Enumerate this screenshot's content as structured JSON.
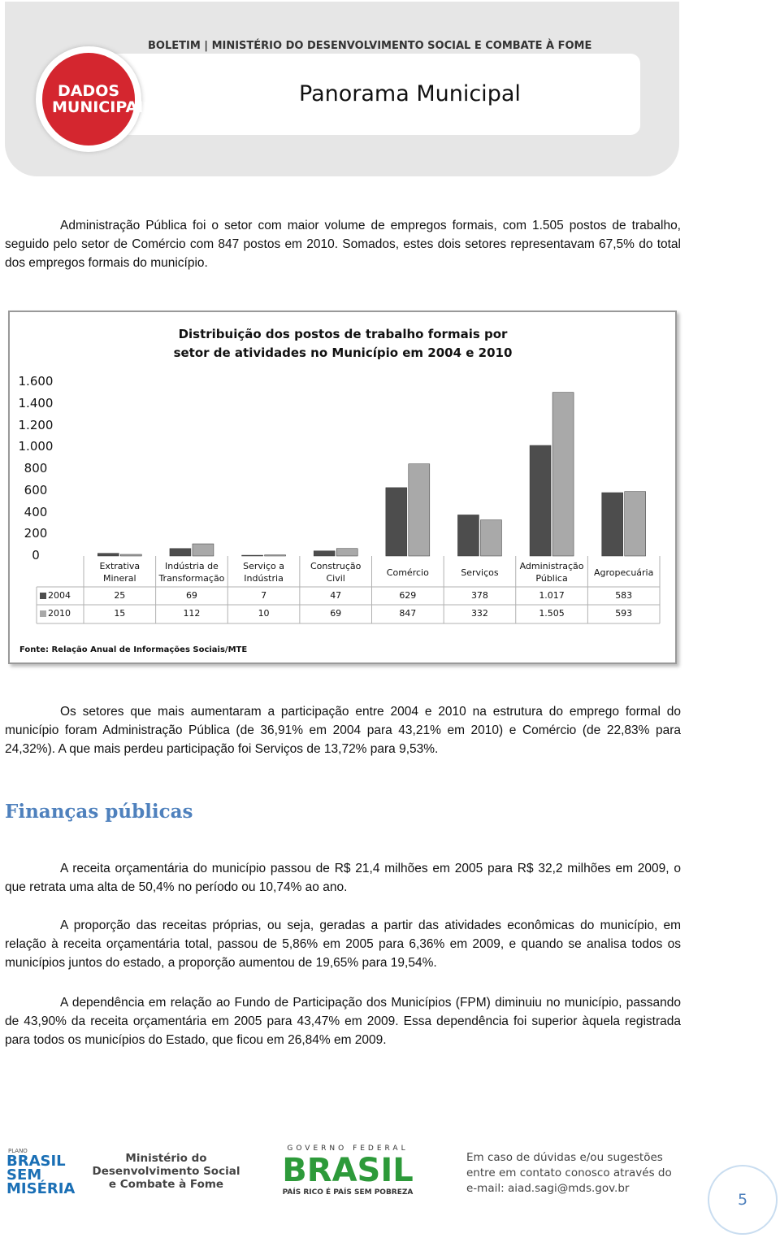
{
  "header": {
    "bulletin": "BOLETIM | MINISTÉRIO DO DESENVOLVIMENTO SOCIAL E COMBATE À FOME",
    "logo": "DADOS MUNICIPAIS",
    "title": "Panorama Municipal"
  },
  "paragraphs": [
    "Administração Pública foi o setor com maior volume de empregos formais, com 1.505 postos de trabalho, seguido pelo setor de Comércio com 847 postos em 2010. Somados, estes dois setores representavam 67,5% do total dos empregos formais do município.",
    "Os setores que mais aumentaram a participação entre 2004 e 2010 na estrutura do emprego formal do município foram Administração Pública (de 36,91% em 2004 para 43,21% em 2010) e Comércio (de 22,83% para 24,32%). A que mais perdeu participação foi Serviços de 13,72% para 9,53%."
  ],
  "chart_data": {
    "type": "bar",
    "title": "Distribuição dos postos de trabalho formais por setor de atividades no Município em 2004 e 2010",
    "categories": [
      "Extrativa Mineral",
      "Indústria de Transformação",
      "Serviço a Indústria",
      "Construção Civil",
      "Comércio",
      "Serviços",
      "Administração Pública",
      "Agropecuária"
    ],
    "series": [
      {
        "name": "2004",
        "color": "#4d4d4d",
        "values": [
          25,
          69,
          7,
          47,
          629,
          378,
          1017,
          583
        ],
        "value_labels": [
          "25",
          "69",
          "7",
          "47",
          "629",
          "378",
          "1.017",
          "583"
        ]
      },
      {
        "name": "2010",
        "color": "#a9a9a9",
        "values": [
          15,
          112,
          10,
          69,
          847,
          332,
          1505,
          593
        ],
        "value_labels": [
          "15",
          "112",
          "10",
          "69",
          "847",
          "332",
          "1.505",
          "593"
        ]
      }
    ],
    "ylim": [
      0,
      1600
    ],
    "yticks": [
      0,
      200,
      400,
      600,
      800,
      {
        "value": 1000,
        "label": "1.000"
      },
      {
        "value": 1200,
        "label": "1.200"
      },
      {
        "value": 1400,
        "label": "1.400"
      },
      {
        "value": 1600,
        "label": "1.600"
      }
    ],
    "grid": false,
    "source": "Fonte: Relação Anual de Informações Sociais/MTE"
  },
  "section": {
    "heading": "Finanças públicas",
    "paragraphs": [
      "A receita orçamentária do município passou de R$ 21,4 milhões em 2005 para R$ 32,2 milhões em 2009, o que retrata uma alta de 50,4% no período ou 10,74% ao ano.",
      "A proporção das receitas próprias, ou seja, geradas a partir das atividades econômicas do município, em relação à receita orçamentária total, passou de 5,86% em 2005 para 6,36% em 2009, e quando se analisa todos os municípios juntos do estado, a proporção aumentou de 19,65% para 19,54%.",
      "A dependência em relação ao Fundo de Participação dos Municípios (FPM) diminuiu no município, passando de 43,90% da receita orçamentária em 2005 para 43,47% em 2009. Essa dependência foi superior àquela registrada para todos os municípios do Estado, que ficou em 26,84% em 2009."
    ]
  },
  "footer": {
    "plan": "PLANO",
    "program": "BRASIL SEM MISÉRIA",
    "ministry": "Ministério do Desenvolvimento Social e Combate à Fome",
    "government": "GOVERNO FEDERAL",
    "country": "BRASIL",
    "slogan": "PAÍS RICO É PAÍS SEM POBREZA",
    "contact": "Em caso de dúvidas e/ou sugestões entre em contato conosco através do e-mail: aiad.sagi@mds.gov.br",
    "page": "5"
  }
}
